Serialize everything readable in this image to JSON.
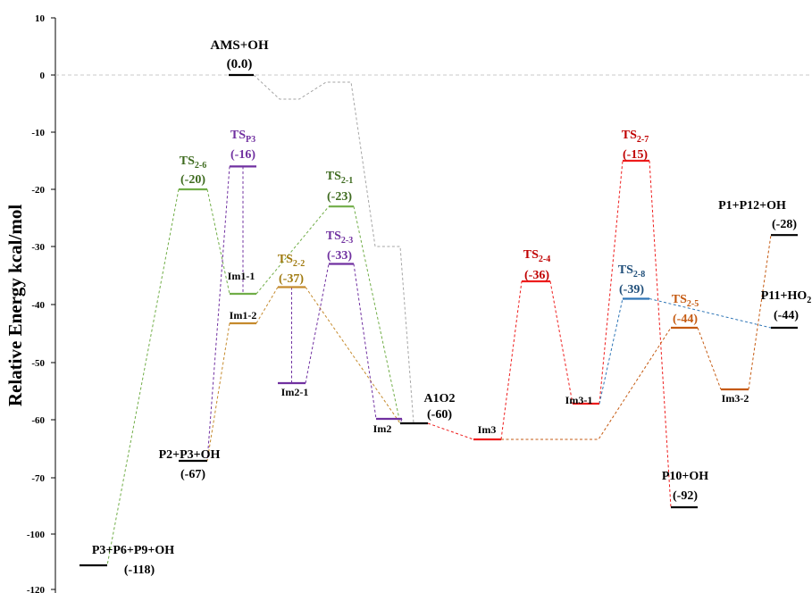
{
  "chart_data": {
    "type": "energy-level-diagram",
    "ylabel": "Relative Energy kcal/mol",
    "y_ticks": [
      "10",
      "0",
      "-10",
      "-20",
      "-30",
      "-40",
      "-50",
      "-60",
      "-70",
      "-100",
      "-120"
    ],
    "zero_line": true,
    "colors": {
      "black": "#000000",
      "green": "#70ad47",
      "purple": "#7030a0",
      "orange": "#c58a2c",
      "red": "#ee1c1c",
      "blue": "#2e75b6",
      "brown": "#c55a11",
      "gray": "#a6a6a6",
      "label_green": "#3e6b1f",
      "label_purple": "#7030a0",
      "label_orange": "#a07a10",
      "label_red": "#c00000",
      "label_blue": "#1f4e79",
      "label_brown": "#c55a11"
    },
    "levels": [
      {
        "id": "ams_oh",
        "name": "AMS+OH",
        "value_label": "(0.0)",
        "energy": 0.0,
        "color": "black"
      },
      {
        "id": "ts2_6",
        "name": "TS",
        "sub": "2-6",
        "value_label": "(-20)",
        "energy": -20,
        "color": "green",
        "label_color": "label_green"
      },
      {
        "id": "tsp3",
        "name": "TS",
        "sub": "P3",
        "value_label": "(-16)",
        "energy": -16,
        "color": "purple",
        "label_color": "label_purple"
      },
      {
        "id": "im1_1",
        "name": "Im1-1",
        "energy": -38,
        "color": "green"
      },
      {
        "id": "im1_2",
        "name": "Im1-2",
        "energy": -43,
        "color": "orange"
      },
      {
        "id": "ts2_1",
        "name": "TS",
        "sub": "2-1",
        "value_label": "(-23)",
        "energy": -23,
        "color": "green",
        "label_color": "label_green"
      },
      {
        "id": "ts2_2",
        "name": "TS",
        "sub": "2-2",
        "value_label": "(-37)",
        "energy": -37,
        "color": "orange",
        "label_color": "label_orange"
      },
      {
        "id": "ts2_3",
        "name": "TS",
        "sub": "2-3",
        "value_label": "(-33)",
        "energy": -33,
        "color": "purple",
        "label_color": "label_purple"
      },
      {
        "id": "im2_1",
        "name": "Im2-1",
        "energy": -53,
        "color": "purple"
      },
      {
        "id": "im2",
        "name": "Im2",
        "energy": -59,
        "color": "purple"
      },
      {
        "id": "a1o2",
        "name": "A1O2",
        "value_label": "(-60)",
        "energy": -60,
        "color": "black"
      },
      {
        "id": "im3",
        "name": "Im3",
        "energy": -63,
        "color": "red"
      },
      {
        "id": "ts2_4",
        "name": "TS",
        "sub": "2-4",
        "value_label": "(-36)",
        "energy": -36,
        "color": "red",
        "label_color": "label_red"
      },
      {
        "id": "im3_1",
        "name": "Im3-1",
        "energy": -57,
        "color": "red"
      },
      {
        "id": "ts2_7",
        "name": "TS",
        "sub": "2-7",
        "value_label": "(-15)",
        "energy": -15,
        "color": "red",
        "label_color": "label_red"
      },
      {
        "id": "ts2_8",
        "name": "TS",
        "sub": "2-8",
        "value_label": "(-39)",
        "energy": -39,
        "color": "blue",
        "label_color": "label_blue"
      },
      {
        "id": "ts2_5",
        "name": "TS",
        "sub": "2-5",
        "value_label": "(-44)",
        "energy": -44,
        "color": "brown",
        "label_color": "label_brown"
      },
      {
        "id": "im3_2",
        "name": "Im3-2",
        "energy": -54,
        "color": "brown"
      },
      {
        "id": "p1_p12_oh",
        "name": "P1+P12+OH",
        "value_label": "(-28)",
        "energy": -28,
        "color": "black"
      },
      {
        "id": "p11_ho2",
        "name": "P11+HO",
        "sub": "2",
        "value_label": "(-44)",
        "energy": -44,
        "color": "black"
      },
      {
        "id": "p10_oh",
        "name": "P10+OH",
        "value_label": "(-92)",
        "energy": -92,
        "color": "black"
      },
      {
        "id": "p2_p3_oh",
        "name": "P2+P3+OH",
        "value_label": "(-67)",
        "energy": -67,
        "color": "black"
      },
      {
        "id": "p3_p6_p9_oh",
        "name": "P3+P6+P9+OH",
        "value_label": "(-118)",
        "energy": -118,
        "color": "black"
      }
    ],
    "connections": [
      {
        "from": "ams_oh",
        "via": "gray-dip",
        "to": "a1o2",
        "color": "gray"
      },
      {
        "from": "ts2_6",
        "to": "p3_p6_p9_oh",
        "color": "green"
      },
      {
        "from": "ts2_6",
        "to": "im1_1",
        "color": "green"
      },
      {
        "from": "im1_1",
        "to": "ts2_1",
        "color": "green"
      },
      {
        "from": "ts2_1",
        "to": "a1o2",
        "color": "green"
      },
      {
        "from": "tsp3",
        "to": "im1_1",
        "color": "purple"
      },
      {
        "from": "tsp3",
        "to": "p2_p3_oh",
        "color": "purple"
      },
      {
        "from": "im1_2",
        "to": "p2_p3_oh",
        "color": "orange"
      },
      {
        "from": "im1_2",
        "to": "ts2_2",
        "color": "orange"
      },
      {
        "from": "ts2_2",
        "to": "a1o2",
        "color": "orange"
      },
      {
        "from": "ts2_2",
        "to": "im2_1",
        "color": "purple"
      },
      {
        "from": "im2_1",
        "to": "ts2_3",
        "color": "purple"
      },
      {
        "from": "ts2_3",
        "to": "im2",
        "color": "purple"
      },
      {
        "from": "im2",
        "to": "a1o2",
        "color": "purple"
      },
      {
        "from": "a1o2",
        "to": "im3",
        "color": "red"
      },
      {
        "from": "im3",
        "to": "ts2_4",
        "color": "red"
      },
      {
        "from": "ts2_4",
        "to": "im3_1",
        "color": "red"
      },
      {
        "from": "im3_1",
        "to": "ts2_7",
        "color": "red"
      },
      {
        "from": "ts2_7",
        "to": "p10_oh",
        "color": "red"
      },
      {
        "from": "im3_1",
        "to": "ts2_8",
        "color": "blue"
      },
      {
        "from": "ts2_8",
        "to": "p11_ho2",
        "color": "blue"
      },
      {
        "from": "im3",
        "to": "ts2_5",
        "color": "brown"
      },
      {
        "from": "ts2_5",
        "to": "im3_2",
        "color": "brown"
      },
      {
        "from": "im3_2",
        "to": "p1_p12_oh",
        "color": "brown"
      }
    ]
  }
}
